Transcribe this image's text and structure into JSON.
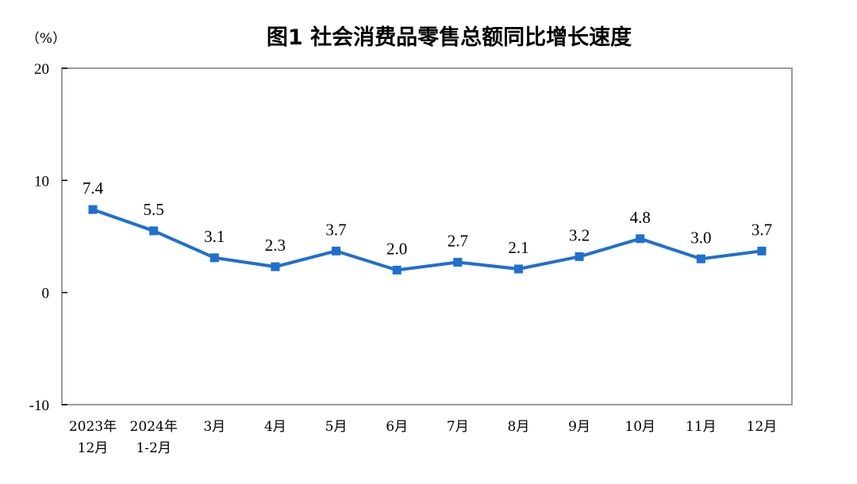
{
  "chart_data": {
    "type": "line",
    "title": "图1  社会消费品零售总额同比增长速度",
    "unit_label": "（%）",
    "categories": [
      [
        "2023年",
        "12月"
      ],
      [
        "2024年",
        "1-2月"
      ],
      [
        "3月"
      ],
      [
        "4月"
      ],
      [
        "5月"
      ],
      [
        "6月"
      ],
      [
        "7月"
      ],
      [
        "8月"
      ],
      [
        "9月"
      ],
      [
        "10月"
      ],
      [
        "11月"
      ],
      [
        "12月"
      ]
    ],
    "series": [
      {
        "values": [
          7.4,
          5.5,
          3.1,
          2.3,
          3.7,
          2.0,
          2.7,
          2.1,
          3.2,
          4.8,
          3.0,
          3.7
        ],
        "labels": [
          "7.4",
          "5.5",
          "3.1",
          "2.3",
          "3.7",
          "2.0",
          "2.7",
          "2.1",
          "3.2",
          "4.8",
          "3.0",
          "3.7"
        ],
        "color": "#1f6fd1",
        "marker": "square"
      }
    ],
    "ylim": [
      -10,
      20
    ],
    "yticks": [
      20,
      10,
      0,
      -10
    ],
    "ytick_labels": [
      "20",
      "10",
      "0",
      "-10"
    ],
    "grid": false,
    "legend": "none"
  }
}
